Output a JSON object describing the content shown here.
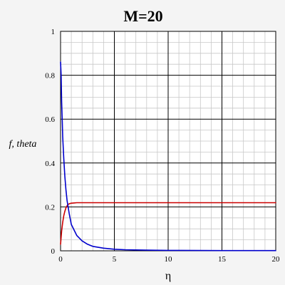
{
  "chart_data": {
    "type": "line",
    "title": "M=20",
    "xlabel": "η",
    "ylabel": "f, theta",
    "xlim": [
      0,
      20
    ],
    "ylim": [
      0,
      1
    ],
    "x_ticks": [
      0,
      5,
      10,
      15,
      20
    ],
    "y_ticks": [
      0,
      0.2,
      0.4,
      0.6,
      0.8,
      1
    ],
    "x_tick_labels": [
      "0",
      "5",
      "10",
      "15",
      "20"
    ],
    "y_tick_labels": [
      "0",
      "0.2",
      "0.4",
      "0.6",
      "0.8",
      "1"
    ],
    "grid": true,
    "legend": "none",
    "series": [
      {
        "color": "#cc0000",
        "x": [
          0,
          0.1,
          0.2,
          0.3,
          0.4,
          0.5,
          0.6,
          0.7,
          0.8,
          0.9,
          1.0,
          1.2,
          1.5,
          2,
          3,
          5,
          10,
          15,
          20
        ],
        "y": [
          0.03,
          0.09,
          0.13,
          0.16,
          0.18,
          0.195,
          0.205,
          0.211,
          0.214,
          0.216,
          0.217,
          0.218,
          0.219,
          0.219,
          0.219,
          0.219,
          0.219,
          0.219,
          0.219
        ]
      },
      {
        "color": "#0000cc",
        "x": [
          0,
          0.05,
          0.1,
          0.15,
          0.2,
          0.3,
          0.4,
          0.5,
          0.6,
          0.8,
          1.0,
          1.5,
          2,
          2.5,
          3,
          4,
          5,
          6,
          8,
          10,
          15,
          20
        ],
        "y": [
          0.86,
          0.8,
          0.68,
          0.6,
          0.52,
          0.42,
          0.34,
          0.28,
          0.23,
          0.17,
          0.12,
          0.07,
          0.045,
          0.03,
          0.02,
          0.012,
          0.007,
          0.005,
          0.003,
          0.002,
          0.001,
          0.001
        ]
      }
    ]
  }
}
